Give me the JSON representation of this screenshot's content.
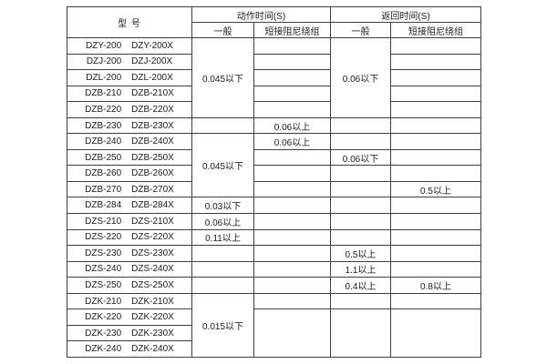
{
  "table": {
    "header": {
      "model": "型  号",
      "groups": [
        {
          "label": "动作时间(S)",
          "sub": [
            "一般",
            "短接阻尼绕组"
          ]
        },
        {
          "label": "返回时间(S)",
          "sub": [
            "一般",
            "短接阻尼绕组"
          ]
        }
      ]
    },
    "rows": [
      {
        "models": [
          "DZY-200",
          "DZY-200X"
        ],
        "cells": [
          {
            "col": "action-general",
            "rowspan": 5,
            "value": "0.045以下"
          },
          {
            "col": "action-damping",
            "value": ""
          },
          {
            "col": "return-general",
            "rowspan": 5,
            "value": "0.06以下"
          },
          {
            "col": "return-damping",
            "value": ""
          }
        ]
      },
      {
        "models": [
          "DZJ-200",
          "DZJ-200X"
        ],
        "cells": [
          {
            "col": "action-damping",
            "value": ""
          },
          {
            "col": "return-damping",
            "value": ""
          }
        ]
      },
      {
        "models": [
          "DZL-200",
          "DZL-200X"
        ],
        "cells": [
          {
            "col": "action-damping",
            "value": ""
          },
          {
            "col": "return-damping",
            "value": ""
          }
        ]
      },
      {
        "models": [
          "DZB-210",
          "DZB-210X"
        ],
        "cells": [
          {
            "col": "action-damping",
            "value": ""
          },
          {
            "col": "return-damping",
            "value": ""
          }
        ]
      },
      {
        "models": [
          "DZB-220",
          "DZB-220X"
        ],
        "cells": [
          {
            "col": "action-damping",
            "value": ""
          },
          {
            "col": "return-damping",
            "value": ""
          }
        ]
      },
      {
        "models": [
          "DZB-230",
          "DZB-230X"
        ],
        "cells": [
          {
            "col": "action-general",
            "value": ""
          },
          {
            "col": "action-damping",
            "value": "0.06以上"
          },
          {
            "col": "return-general",
            "value": ""
          },
          {
            "col": "return-damping",
            "value": ""
          }
        ]
      },
      {
        "models": [
          "DZB-240",
          "DZB-240X"
        ],
        "cells": [
          {
            "col": "action-general",
            "rowspan": 4,
            "value": "0.045以下"
          },
          {
            "col": "action-damping",
            "value": "0.06以上"
          },
          {
            "col": "return-general",
            "value": ""
          },
          {
            "col": "return-damping",
            "value": ""
          }
        ]
      },
      {
        "models": [
          "DZB-250",
          "DZB-250X"
        ],
        "cells": [
          {
            "col": "action-damping",
            "value": ""
          },
          {
            "col": "return-general",
            "value": "0.06以下"
          },
          {
            "col": "return-damping",
            "value": ""
          }
        ]
      },
      {
        "models": [
          "DZB-260",
          "DZB-260X"
        ],
        "cells": [
          {
            "col": "action-damping",
            "value": ""
          },
          {
            "col": "return-general",
            "value": ""
          },
          {
            "col": "return-damping",
            "value": ""
          }
        ]
      },
      {
        "models": [
          "DZB-270",
          "DZB-270X"
        ],
        "cells": [
          {
            "col": "action-damping",
            "value": ""
          },
          {
            "col": "return-general",
            "value": ""
          },
          {
            "col": "return-damping",
            "value": "0.5以上"
          }
        ]
      },
      {
        "models": [
          "DZB-284",
          "DZB-284X"
        ],
        "cells": [
          {
            "col": "action-general",
            "value": "0.03以下"
          },
          {
            "col": "action-damping",
            "value": ""
          },
          {
            "col": "return-general",
            "value": ""
          },
          {
            "col": "return-damping",
            "value": ""
          }
        ]
      },
      {
        "models": [
          "DZS-210",
          "DZS-210X"
        ],
        "cells": [
          {
            "col": "action-general",
            "value": "0.06以上"
          },
          {
            "col": "action-damping",
            "value": ""
          },
          {
            "col": "return-general",
            "value": ""
          },
          {
            "col": "return-damping",
            "value": ""
          }
        ]
      },
      {
        "models": [
          "DZS-220",
          "DZS-220X"
        ],
        "cells": [
          {
            "col": "action-general",
            "value": "0.11以上"
          },
          {
            "col": "action-damping",
            "value": ""
          },
          {
            "col": "return-general",
            "value": ""
          },
          {
            "col": "return-damping",
            "value": ""
          }
        ]
      },
      {
        "models": [
          "DZS-230",
          "DZS-230X"
        ],
        "cells": [
          {
            "col": "action-general",
            "value": ""
          },
          {
            "col": "action-damping",
            "value": ""
          },
          {
            "col": "return-general",
            "value": "0.5以上"
          },
          {
            "col": "return-damping",
            "value": ""
          }
        ]
      },
      {
        "models": [
          "DZS-240",
          "DZS-240X"
        ],
        "cells": [
          {
            "col": "action-general",
            "value": ""
          },
          {
            "col": "action-damping",
            "value": ""
          },
          {
            "col": "return-general",
            "value": "1.1以上"
          },
          {
            "col": "return-damping",
            "value": ""
          }
        ]
      },
      {
        "models": [
          "DZS-250",
          "DZS-250X"
        ],
        "cells": [
          {
            "col": "action-general",
            "value": ""
          },
          {
            "col": "action-damping",
            "value": ""
          },
          {
            "col": "return-general",
            "value": "0.4以上"
          },
          {
            "col": "return-damping",
            "value": "0.8以上"
          }
        ]
      },
      {
        "models": [
          "DZK-210",
          "DZK-210X"
        ],
        "cells": [
          {
            "col": "action-general",
            "rowspan": 4,
            "value": "0.015以下"
          },
          {
            "col": "action-damping",
            "value": ""
          },
          {
            "col": "return-general",
            "value": ""
          },
          {
            "col": "return-damping",
            "value": ""
          }
        ]
      },
      {
        "models": [
          "DZK-220",
          "DZK-220X"
        ],
        "cells": [
          {
            "col": "action-damping",
            "rowspan": 3,
            "value": ""
          },
          {
            "col": "return-general",
            "rowspan": 3,
            "value": ""
          },
          {
            "col": "return-damping",
            "rowspan": 3,
            "value": ""
          }
        ]
      },
      {
        "models": [
          "DZK-230",
          "DZK-230X"
        ],
        "cells": []
      },
      {
        "models": [
          "DZK-240",
          "DZK-240X"
        ],
        "cells": []
      }
    ]
  }
}
